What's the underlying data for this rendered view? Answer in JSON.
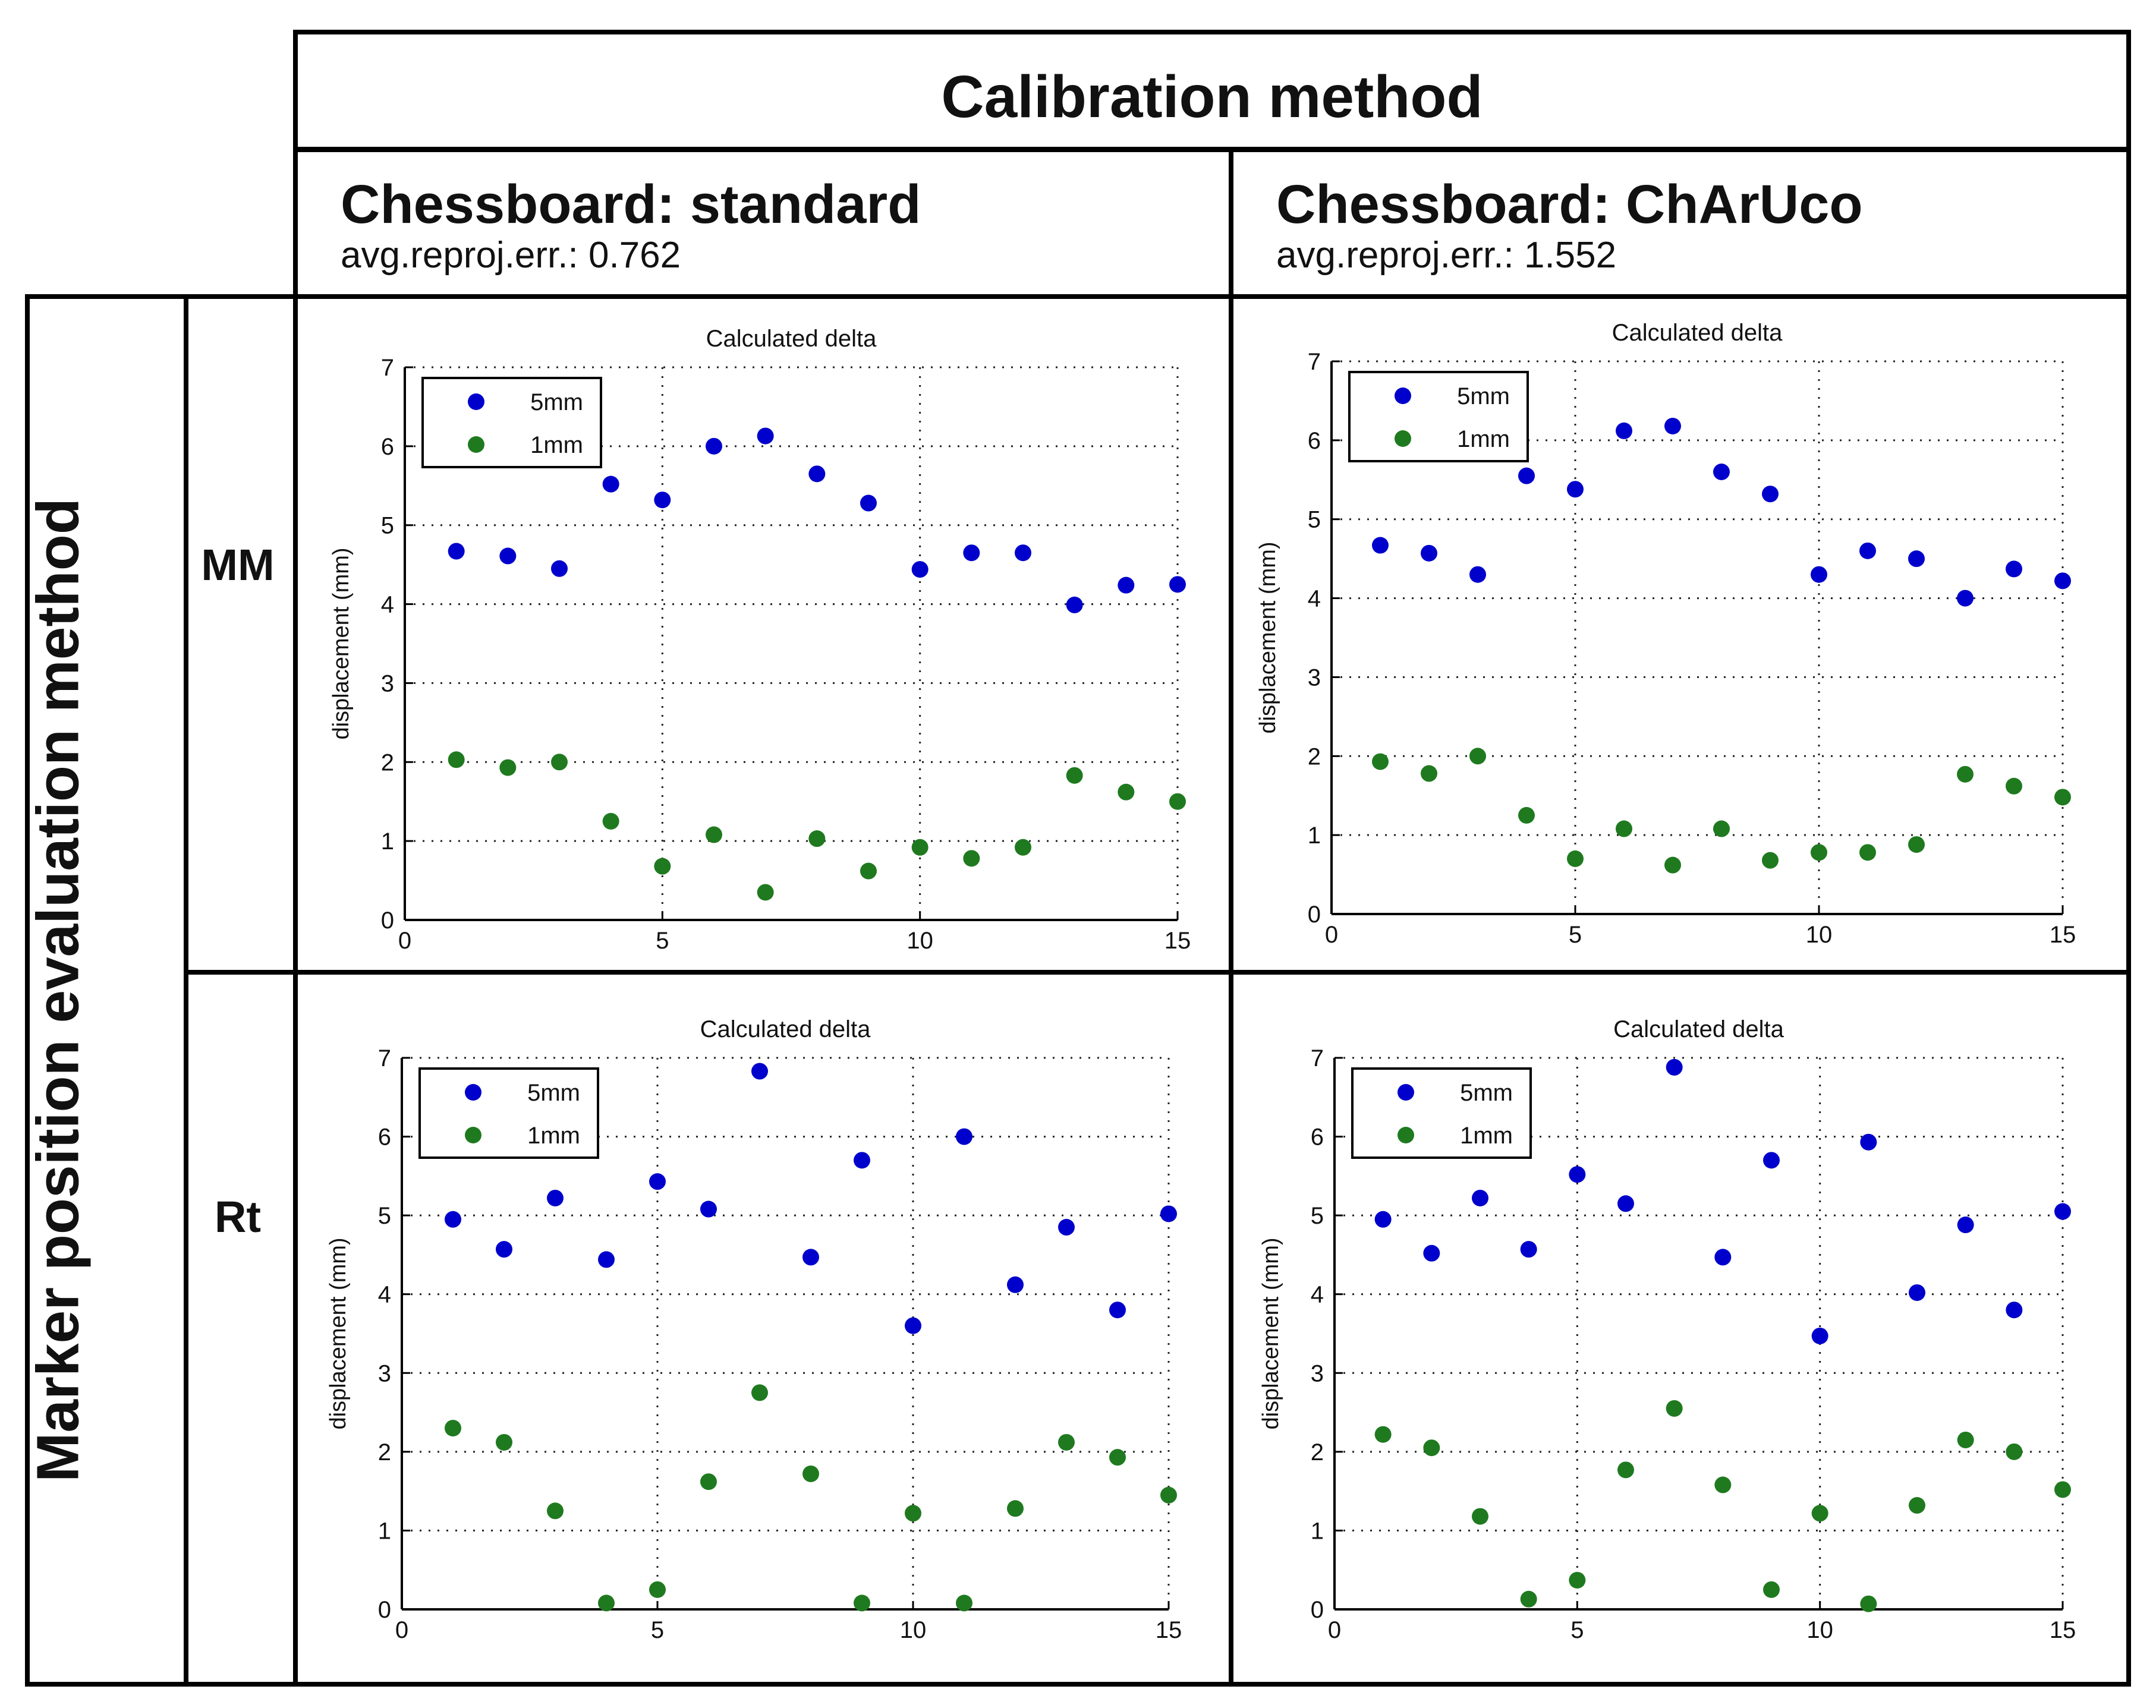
{
  "header": {
    "title": "Calibration method",
    "columns": [
      {
        "title": "Chessboard: standard",
        "subtitle": "avg.reproj.err.: 0.762"
      },
      {
        "title": "Chessboard: ChArUco",
        "subtitle": "avg.reproj.err.: 1.552"
      }
    ]
  },
  "rows": {
    "title": "Marker position evaluation method",
    "labels": [
      "MM",
      "Rt"
    ]
  },
  "colors": {
    "series_5mm": "#0000cc",
    "series_1mm": "#1f7a1f"
  },
  "chart_data": [
    {
      "type": "scatter",
      "panel": "MM / Chessboard: standard",
      "title": "Calculated delta",
      "xlabel": "",
      "ylabel": "displacement (mm)",
      "xlim": [
        0,
        15
      ],
      "ylim": [
        0,
        7
      ],
      "grid": true,
      "legend": "top-left",
      "x_ticks": [
        0,
        5,
        10,
        15
      ],
      "y_ticks": [
        0,
        1,
        2,
        3,
        4,
        5,
        6,
        7
      ],
      "series": [
        {
          "name": "5mm",
          "x": [
            1,
            2,
            3,
            4,
            5,
            6,
            7,
            8,
            9,
            10,
            11,
            12,
            13,
            14,
            15
          ],
          "y": [
            4.67,
            4.61,
            4.45,
            5.52,
            5.32,
            6.0,
            6.13,
            5.65,
            5.28,
            4.44,
            4.65,
            4.65,
            3.99,
            4.24,
            4.25
          ]
        },
        {
          "name": "1mm",
          "x": [
            1,
            2,
            3,
            4,
            5,
            6,
            7,
            8,
            9,
            10,
            11,
            12,
            13,
            14,
            15
          ],
          "y": [
            2.03,
            1.93,
            2.0,
            1.25,
            0.68,
            1.08,
            0.35,
            1.03,
            0.62,
            0.92,
            0.78,
            0.92,
            1.83,
            1.62,
            1.5
          ]
        }
      ]
    },
    {
      "type": "scatter",
      "panel": "MM / Chessboard: ChArUco",
      "title": "Calculated delta",
      "xlabel": "",
      "ylabel": "displacement (mm)",
      "xlim": [
        0,
        15
      ],
      "ylim": [
        0,
        7
      ],
      "grid": true,
      "legend": "top-left",
      "x_ticks": [
        0,
        5,
        10,
        15
      ],
      "y_ticks": [
        0,
        1,
        2,
        3,
        4,
        5,
        6,
        7
      ],
      "series": [
        {
          "name": "5mm",
          "x": [
            1,
            2,
            3,
            4,
            5,
            6,
            7,
            8,
            9,
            10,
            11,
            12,
            13,
            14,
            15
          ],
          "y": [
            4.67,
            4.57,
            4.3,
            5.55,
            5.38,
            6.12,
            6.18,
            5.6,
            5.32,
            4.3,
            4.6,
            4.5,
            4.0,
            4.37,
            4.22
          ]
        },
        {
          "name": "1mm",
          "x": [
            1,
            2,
            3,
            4,
            5,
            6,
            7,
            8,
            9,
            10,
            11,
            12,
            13,
            14,
            15
          ],
          "y": [
            1.93,
            1.78,
            2.0,
            1.25,
            0.7,
            1.08,
            0.62,
            1.08,
            0.68,
            0.78,
            0.78,
            0.88,
            1.77,
            1.62,
            1.48
          ]
        }
      ]
    },
    {
      "type": "scatter",
      "panel": "Rt / Chessboard: standard",
      "title": "Calculated delta",
      "xlabel": "",
      "ylabel": "displacement (mm)",
      "xlim": [
        0,
        15
      ],
      "ylim": [
        0,
        7
      ],
      "grid": true,
      "legend": "top-left",
      "x_ticks": [
        0,
        5,
        10,
        15
      ],
      "y_ticks": [
        0,
        1,
        2,
        3,
        4,
        5,
        6,
        7
      ],
      "series": [
        {
          "name": "5mm",
          "x": [
            1,
            2,
            3,
            4,
            5,
            6,
            7,
            8,
            9,
            10,
            11,
            12,
            13,
            14,
            15
          ],
          "y": [
            4.95,
            4.57,
            5.22,
            4.44,
            5.43,
            5.08,
            6.83,
            4.47,
            5.7,
            3.6,
            6.0,
            4.12,
            4.85,
            3.8,
            5.02
          ]
        },
        {
          "name": "1mm",
          "x": [
            1,
            2,
            3,
            4,
            5,
            6,
            7,
            8,
            9,
            10,
            11,
            12,
            13,
            14,
            15
          ],
          "y": [
            2.3,
            2.12,
            1.25,
            0.08,
            0.25,
            1.62,
            2.75,
            1.72,
            0.08,
            1.22,
            0.08,
            1.28,
            2.12,
            1.93,
            1.45
          ]
        }
      ]
    },
    {
      "type": "scatter",
      "panel": "Rt / Chessboard: ChArUco",
      "title": "Calculated delta",
      "xlabel": "",
      "ylabel": "displacement (mm)",
      "xlim": [
        0,
        15
      ],
      "ylim": [
        0,
        7
      ],
      "grid": true,
      "legend": "top-left",
      "x_ticks": [
        0,
        5,
        10,
        15
      ],
      "y_ticks": [
        0,
        1,
        2,
        3,
        4,
        5,
        6,
        7
      ],
      "series": [
        {
          "name": "5mm",
          "x": [
            1,
            2,
            3,
            4,
            5,
            6,
            7,
            8,
            9,
            10,
            11,
            12,
            13,
            14,
            15
          ],
          "y": [
            4.95,
            4.52,
            5.22,
            4.57,
            5.52,
            5.15,
            6.88,
            4.47,
            5.7,
            3.47,
            5.93,
            4.02,
            4.88,
            3.8,
            5.05
          ]
        },
        {
          "name": "1mm",
          "x": [
            1,
            2,
            3,
            4,
            5,
            6,
            7,
            8,
            9,
            10,
            11,
            12,
            13,
            14,
            15
          ],
          "y": [
            2.22,
            2.05,
            1.18,
            0.13,
            0.37,
            1.77,
            2.55,
            1.58,
            0.25,
            1.22,
            0.07,
            1.32,
            2.15,
            2.0,
            1.52
          ]
        }
      ]
    }
  ]
}
